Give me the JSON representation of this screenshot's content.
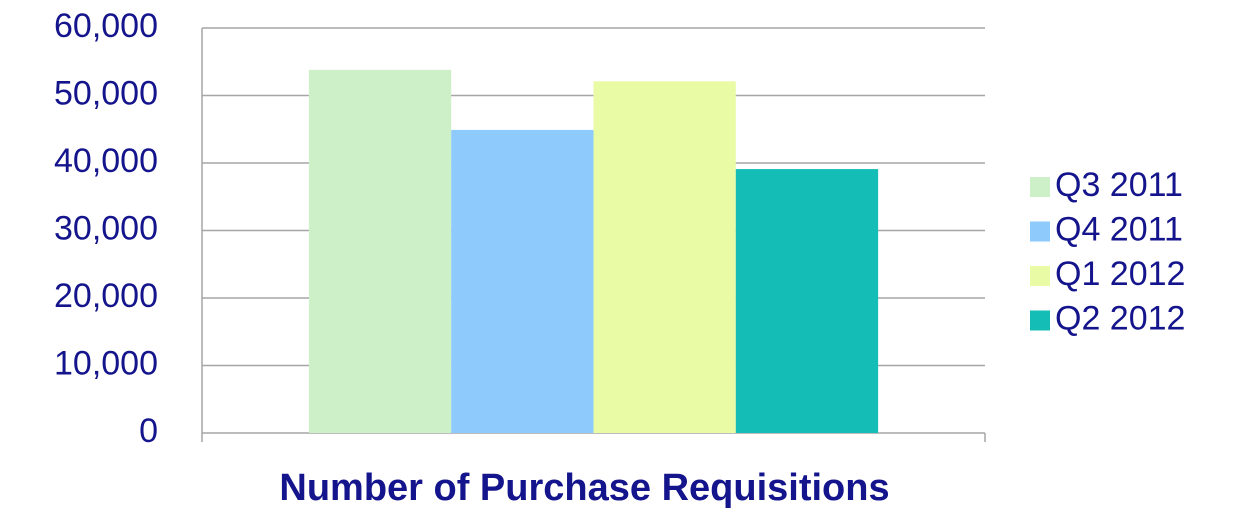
{
  "chart_data": {
    "type": "bar",
    "categories": [
      "Number of Purchase Requisitions"
    ],
    "series": [
      {
        "name": "Q3 2011",
        "color": "#cdf0c8",
        "values": [
          53800
        ]
      },
      {
        "name": "Q4 2011",
        "color": "#8fcafc",
        "values": [
          44900
        ]
      },
      {
        "name": "Q1 2012",
        "color": "#e9fba5",
        "values": [
          52100
        ]
      },
      {
        "name": "Q2 2012",
        "color": "#14bdb5",
        "values": [
          39100
        ]
      }
    ],
    "ylim": [
      0,
      60000
    ],
    "yticks": [
      0,
      {
        "value": 10000,
        "label": "10,000"
      },
      {
        "value": 20000,
        "label": "20,000"
      },
      {
        "value": 30000,
        "label": "30,000"
      },
      {
        "value": 40000,
        "label": "40,000"
      },
      {
        "value": 50000,
        "label": "50,000"
      },
      {
        "value": 60000,
        "label": "60,000"
      }
    ],
    "grid": true,
    "legend": "right"
  }
}
